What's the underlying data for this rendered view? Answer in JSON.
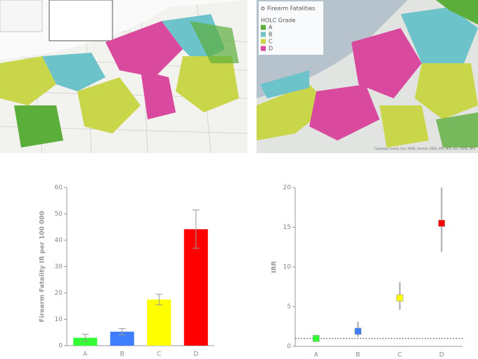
{
  "map": {
    "legend_point": "Firearm Fatalities",
    "legend_title": "HOLC Grade",
    "grades": [
      "A",
      "B",
      "C",
      "D"
    ],
    "grade_colors": [
      "#5cae3b",
      "#6cc3c9",
      "#c9d649",
      "#d9499e"
    ],
    "attribution": "Cuyahoga County, Esri, HERE, Garmin, USGS, EPA, NPS, Esri, HERE, NPS"
  },
  "chart_data": [
    {
      "type": "bar",
      "y_label": "Firearm Fatality IR per 100 000",
      "categories": [
        "A",
        "B",
        "C",
        "D"
      ],
      "values": [
        3,
        5.3,
        17.5,
        44.2
      ],
      "ci_lower": [
        1.7,
        4.1,
        15.5,
        37
      ],
      "ci_upper": [
        4.3,
        6.5,
        19.5,
        51.5
      ],
      "colors": [
        "#33ff33",
        "#3f7fff",
        "#ffff00",
        "#ff0000"
      ],
      "ylim": [
        0,
        60
      ],
      "yticks": [
        0,
        10,
        20,
        30,
        40,
        50,
        60
      ]
    },
    {
      "type": "scatter",
      "y_label": "IRR",
      "categories": [
        "A",
        "B",
        "C",
        "D"
      ],
      "values": [
        1,
        1.9,
        6.1,
        15.5
      ],
      "ci_lower": [
        null,
        1.2,
        4.6,
        11.9
      ],
      "ci_upper": [
        null,
        3.1,
        8.1,
        20.0
      ],
      "colors": [
        "#33ff33",
        "#3f7fff",
        "#ffff00",
        "#ff0000"
      ],
      "ylim": [
        0,
        20
      ],
      "yticks": [
        0,
        5,
        10,
        15,
        20
      ],
      "reference_line": 1
    }
  ]
}
